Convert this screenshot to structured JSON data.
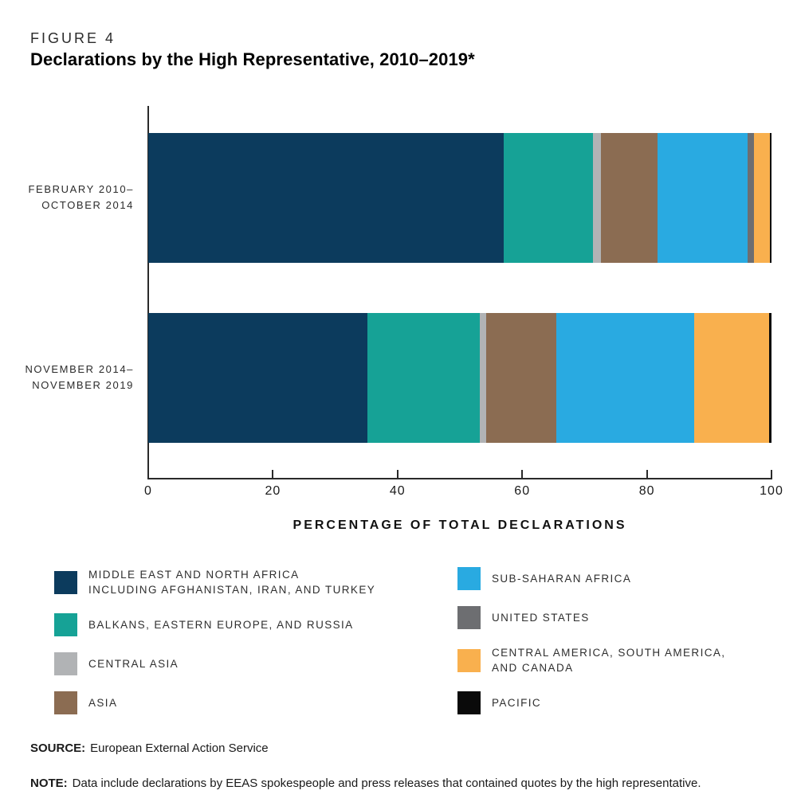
{
  "header": {
    "figure_label": "FIGURE 4",
    "title": "Declarations by the High Representative, 2010–2019*"
  },
  "chart_data": {
    "type": "bar",
    "variant": "horizontal-stacked",
    "title": "Declarations by the High Representative, 2010–2019*",
    "xlabel": "PERCENTAGE OF TOTAL DECLARATIONS",
    "xlim": [
      0,
      100
    ],
    "x_ticks": [
      0,
      20,
      40,
      60,
      80,
      100
    ],
    "grid": false,
    "legend_position": "bottom",
    "unit": "percent of total declarations",
    "categories": [
      "FEBRUARY 2010–OCTOBER 2014",
      "NOVEMBER 2014–NOVEMBER 2019"
    ],
    "category_label_lines": [
      [
        "FEBRUARY 2010–",
        "OCTOBER 2014"
      ],
      [
        "NOVEMBER 2014–",
        "NOVEMBER 2019"
      ]
    ],
    "series": [
      {
        "name": "MIDDLE EAST AND NORTH AFRICA INCLUDING AFGHANISTAN, IRAN, AND TURKEY",
        "color": "#0c3b5d",
        "values": [
          57.0,
          35.2
        ]
      },
      {
        "name": "BALKANS, EASTERN EUROPE, AND RUSSIA",
        "color": "#16a296",
        "values": [
          14.4,
          18.0
        ]
      },
      {
        "name": "CENTRAL ASIA",
        "color": "#b1b3b5",
        "values": [
          1.3,
          1.0
        ]
      },
      {
        "name": "ASIA",
        "color": "#8b6c52",
        "values": [
          9.0,
          11.3
        ]
      },
      {
        "name": "SUB-SAHARAN AFRICA",
        "color": "#29aae1",
        "values": [
          14.5,
          22.1
        ]
      },
      {
        "name": "UNITED STATES",
        "color": "#6d6e71",
        "values": [
          1.0,
          0.0
        ]
      },
      {
        "name": "CENTRAL AMERICA, SOUTH AMERICA, AND CANADA",
        "color": "#f9b04e",
        "values": [
          2.5,
          12.0
        ]
      },
      {
        "name": "PACIFIC",
        "color": "#0a0a0a",
        "values": [
          0.3,
          0.4
        ]
      }
    ]
  },
  "legend": {
    "columns": [
      [
        {
          "color": "#0c3b5d",
          "lines": [
            "MIDDLE EAST AND NORTH AFRICA",
            "INCLUDING AFGHANISTAN, IRAN, AND TURKEY"
          ]
        },
        {
          "color": "#16a296",
          "lines": [
            "BALKANS, EASTERN EUROPE, AND RUSSIA"
          ]
        },
        {
          "color": "#b1b3b5",
          "lines": [
            "CENTRAL ASIA"
          ]
        },
        {
          "color": "#8b6c52",
          "lines": [
            "ASIA"
          ]
        }
      ],
      [
        {
          "color": "#29aae1",
          "lines": [
            "SUB-SAHARAN AFRICA"
          ]
        },
        {
          "color": "#6d6e71",
          "lines": [
            "UNITED STATES"
          ]
        },
        {
          "color": "#f9b04e",
          "lines": [
            "CENTRAL AMERICA, SOUTH AMERICA,",
            "AND CANADA"
          ]
        },
        {
          "color": "#0a0a0a",
          "lines": [
            "PACIFIC"
          ]
        }
      ]
    ]
  },
  "footer": {
    "source_label": "SOURCE:",
    "source_text": "European External Action Service",
    "note_label": "NOTE:",
    "note_text": "Data include declarations by EEAS spokespeople and press releases that contained quotes by the high representative."
  }
}
